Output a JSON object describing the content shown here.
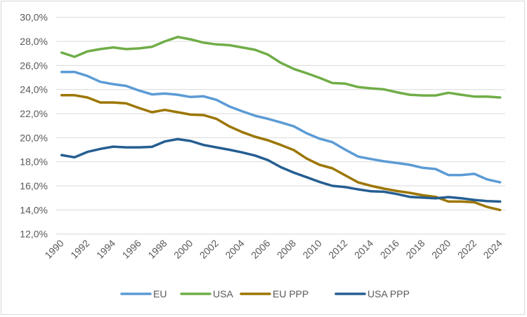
{
  "chart_data": {
    "type": "line",
    "title": "",
    "xlabel": "",
    "ylabel": "",
    "ylim": [
      12,
      30
    ],
    "ytick_step": 2,
    "ytick_format": "comma-decimal-percent",
    "yticks": [
      "12,0%",
      "14,0%",
      "16,0%",
      "18,0%",
      "20,0%",
      "22,0%",
      "24,0%",
      "26,0%",
      "28,0%",
      "30,0%"
    ],
    "xticks": [
      "1990",
      "1992",
      "1994",
      "1996",
      "1998",
      "2000",
      "2002",
      "2004",
      "2006",
      "2008",
      "2010",
      "2012",
      "2014",
      "2016",
      "2018",
      "2020",
      "2022",
      "2024"
    ],
    "grid": "horizontal",
    "legend_position": "bottom",
    "x": [
      1990,
      1991,
      1992,
      1993,
      1994,
      1995,
      1996,
      1997,
      1998,
      1999,
      2000,
      2001,
      2002,
      2003,
      2004,
      2005,
      2006,
      2007,
      2008,
      2009,
      2010,
      2011,
      2012,
      2013,
      2014,
      2015,
      2016,
      2017,
      2018,
      2019,
      2020,
      2021,
      2022,
      2023,
      2024
    ],
    "series": [
      {
        "name": "EU",
        "color": "#5b9bd5",
        "values": [
          25.46,
          25.46,
          25.13,
          24.64,
          24.45,
          24.3,
          23.92,
          23.6,
          23.67,
          23.57,
          23.38,
          23.44,
          23.15,
          22.6,
          22.2,
          21.83,
          21.57,
          21.27,
          20.95,
          20.37,
          19.92,
          19.63,
          19.0,
          18.43,
          18.23,
          18.04,
          17.9,
          17.75,
          17.5,
          17.4,
          16.9,
          16.9,
          17.0,
          16.54,
          16.3
        ]
      },
      {
        "name": "USA",
        "color": "#70ad47",
        "values": [
          27.07,
          26.72,
          27.17,
          27.36,
          27.5,
          27.36,
          27.42,
          27.55,
          28.0,
          28.37,
          28.17,
          27.9,
          27.75,
          27.69,
          27.5,
          27.3,
          26.9,
          26.22,
          25.71,
          25.36,
          24.97,
          24.54,
          24.49,
          24.21,
          24.1,
          24.02,
          23.77,
          23.57,
          23.51,
          23.51,
          23.73,
          23.57,
          23.42,
          23.42,
          23.34
        ]
      },
      {
        "name": "EU PPP",
        "color": "#9c7600",
        "values": [
          23.53,
          23.53,
          23.34,
          22.93,
          22.93,
          22.85,
          22.47,
          22.12,
          22.31,
          22.12,
          21.92,
          21.88,
          21.57,
          20.95,
          20.47,
          20.08,
          19.79,
          19.4,
          18.97,
          18.27,
          17.75,
          17.46,
          16.87,
          16.29,
          16.0,
          15.77,
          15.57,
          15.42,
          15.22,
          15.09,
          14.7,
          14.7,
          14.64,
          14.25,
          14.0
        ]
      },
      {
        "name": "USA PPP",
        "color": "#255e91",
        "values": [
          18.56,
          18.37,
          18.82,
          19.07,
          19.26,
          19.2,
          19.2,
          19.24,
          19.69,
          19.88,
          19.73,
          19.4,
          19.2,
          19.0,
          18.78,
          18.52,
          18.14,
          17.55,
          17.1,
          16.72,
          16.33,
          16.0,
          15.9,
          15.71,
          15.55,
          15.51,
          15.32,
          15.09,
          15.03,
          14.97,
          15.07,
          14.97,
          14.83,
          14.74,
          14.7
        ]
      }
    ]
  }
}
